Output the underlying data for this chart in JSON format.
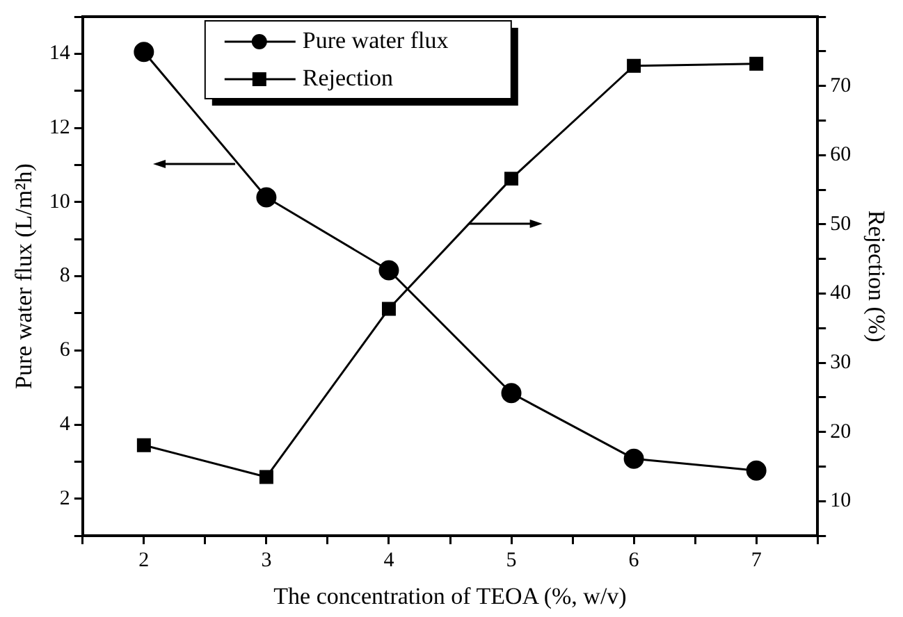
{
  "chart_data": {
    "type": "line",
    "xlabel": "The concentration of TEOA (%, w/v)",
    "ylabel": "Pure water flux (L/m²h)",
    "y2label": "Rejection (%)",
    "x": [
      2,
      3,
      4,
      5,
      6,
      7
    ],
    "series": [
      {
        "name": "Pure water flux",
        "color": "#000000",
        "marker": "circle",
        "values": [
          14.05,
          10.13,
          8.16,
          4.85,
          3.08,
          2.76
        ]
      },
      {
        "name": "Rejection",
        "color": "#000000",
        "marker": "square",
        "axis": "y2",
        "values": [
          18.1,
          13.5,
          37.8,
          56.6,
          72.9,
          73.2
        ]
      }
    ],
    "xlim": [
      1.5,
      7.5
    ],
    "xticks": [
      {
        "value": 1.5,
        "label": null
      },
      2,
      {
        "value": 2.5,
        "label": null
      },
      3,
      {
        "value": 3.5,
        "label": null
      },
      4,
      {
        "value": 4.5,
        "label": null
      },
      5,
      {
        "value": 5.5,
        "label": null
      },
      6,
      {
        "value": 6.5,
        "label": null
      },
      7,
      {
        "value": 7.5,
        "label": null
      }
    ],
    "ylim": [
      1,
      15
    ],
    "yticks": [
      {
        "value": 1,
        "label": null
      },
      2,
      {
        "value": 3,
        "label": null
      },
      4,
      {
        "value": 5,
        "label": null
      },
      6,
      {
        "value": 7,
        "label": null
      },
      8,
      {
        "value": 9,
        "label": null
      },
      10,
      {
        "value": 11,
        "label": null
      },
      12,
      {
        "value": 13,
        "label": null
      },
      14,
      {
        "value": 15,
        "label": null
      }
    ],
    "y2lim": [
      5,
      80
    ],
    "y2ticks": [
      {
        "value": 5,
        "label": null
      },
      10,
      {
        "value": 15,
        "label": null
      },
      20,
      {
        "value": 25,
        "label": null
      },
      30,
      {
        "value": 35,
        "label": null
      },
      40,
      {
        "value": 45,
        "label": null
      },
      50,
      {
        "value": 55,
        "label": null
      },
      60,
      {
        "value": 65,
        "label": null
      },
      70,
      {
        "value": 75,
        "label": null
      },
      {
        "value": 80,
        "label": null
      }
    ],
    "legend": "top",
    "grid": false,
    "line_style": "solid"
  }
}
